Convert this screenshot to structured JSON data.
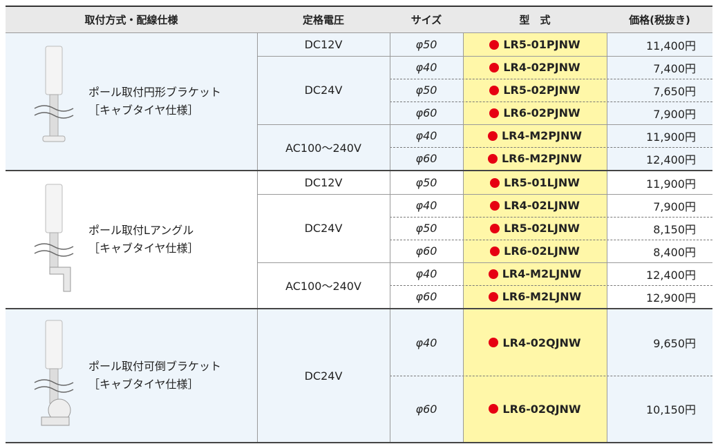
{
  "header": [
    "取付方式・配線仕様",
    "定格電圧",
    "サイズ",
    "型　式",
    "価格(税抜き)"
  ],
  "groups": [
    {
      "mounting": [
        "ポール取付円形ブラケット",
        "［キャブタイヤ仕様］"
      ],
      "voltages": [
        {
          "voltage": "DC12V",
          "rows": [
            [
              "φ50",
              "LR5-01PJNW",
              "11,400円"
            ]
          ]
        },
        {
          "voltage": "DC24V",
          "rows": [
            [
              "φ40",
              "LR4-02PJNW",
              "7,400円"
            ],
            [
              "φ50",
              "LR5-02PJNW",
              "7,650円"
            ],
            [
              "φ60",
              "LR6-02PJNW",
              "7,900円"
            ]
          ]
        },
        {
          "voltage": "AC100～240V",
          "rows": [
            [
              "φ40",
              "LR4-M2PJNW",
              "11,900円"
            ],
            [
              "φ60",
              "LR6-M2PJNW",
              "12,400円"
            ]
          ]
        }
      ]
    },
    {
      "mounting": [
        "ポール取付Lアングル",
        "［キャブタイヤ仕様］"
      ],
      "voltages": [
        {
          "voltage": "DC12V",
          "rows": [
            [
              "φ50",
              "LR5-01LJNW",
              "11,900円"
            ]
          ]
        },
        {
          "voltage": "DC24V",
          "rows": [
            [
              "φ40",
              "LR4-02LJNW",
              "7,900円"
            ],
            [
              "φ50",
              "LR5-02LJNW",
              "8,150円"
            ],
            [
              "φ60",
              "LR6-02LJNW",
              "8,400円"
            ]
          ]
        },
        {
          "voltage": "AC100～240V",
          "rows": [
            [
              "φ40",
              "LR4-M2LJNW",
              "12,400円"
            ],
            [
              "φ60",
              "LR6-M2LJNW",
              "12,900円"
            ]
          ]
        }
      ]
    },
    {
      "mounting": [
        "ポール取付可倒ブラケット",
        "［キャブタイヤ仕様］"
      ],
      "voltages": [
        {
          "voltage": "DC24V",
          "rows": [
            [
              "φ40",
              "LR4-02QJNW",
              "9,650円"
            ],
            [
              "φ60",
              "LR6-02QJNW",
              "10,150円"
            ]
          ]
        }
      ]
    }
  ]
}
